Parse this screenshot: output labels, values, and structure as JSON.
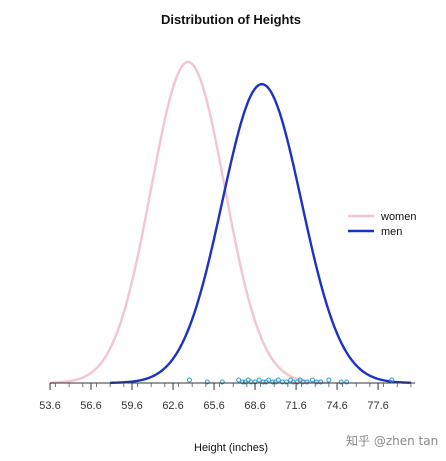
{
  "chart_data": {
    "type": "line",
    "title": "Distribution of Heights",
    "xlabel": "Height (inches)",
    "ylabel": "",
    "xlim": [
      53.6,
      80.3
    ],
    "x_ticks": [
      53.6,
      56.6,
      59.6,
      62.6,
      65.6,
      68.6,
      71.6,
      74.6,
      77.6
    ],
    "tick_labels": [
      "53.6",
      "56.6",
      "59.6",
      "62.6",
      "65.6",
      "68.6",
      "71.6",
      "74.6",
      "77.6"
    ],
    "legend_position": "right",
    "grid": false,
    "series": [
      {
        "name": "women",
        "color": "#f4c4d0",
        "kind": "normal",
        "mean": 63.7,
        "sd": 2.7,
        "x_range": [
          53.6,
          74.0
        ]
      },
      {
        "name": "men",
        "color": "#1a33c4",
        "kind": "normal",
        "mean": 69.1,
        "sd": 2.9,
        "x_range": [
          58.0,
          80.0
        ]
      }
    ],
    "rug": {
      "name": "samples",
      "color": "#2a9fd6",
      "values": [
        63.8,
        65.1,
        66.2,
        67.4,
        67.7,
        67.9,
        68.1,
        68.3,
        68.6,
        68.9,
        69.2,
        69.4,
        69.6,
        69.9,
        70.1,
        70.3,
        70.6,
        70.9,
        71.2,
        71.4,
        71.7,
        71.9,
        72.1,
        72.4,
        72.8,
        73.1,
        73.4,
        74.0,
        74.9,
        75.3,
        78.6
      ]
    }
  },
  "watermark": "知乎 @zhen tan"
}
